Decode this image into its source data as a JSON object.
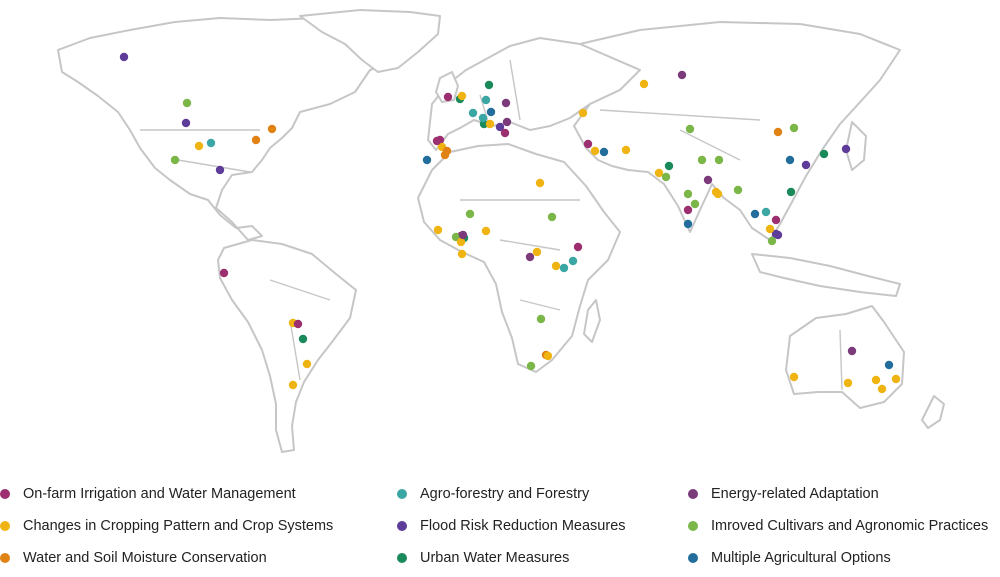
{
  "colors": {
    "on_farm_irrigation": "#9c2f6f",
    "changes_cropping": "#f0b412",
    "water_soil": "#e08214",
    "agro_forestry": "#3aa7a4",
    "flood_risk": "#5e3c99",
    "urban_water": "#1a8a5a",
    "energy": "#7b3b7b",
    "improved_cultivars": "#7ab648",
    "multiple_agri": "#236d9c"
  },
  "legend": [
    {
      "key": "on_farm_irrigation",
      "label": "On-farm Irrigation and Water Management"
    },
    {
      "key": "changes_cropping",
      "label": "Changes in Cropping Pattern and Crop Systems"
    },
    {
      "key": "water_soil",
      "label": "Water and Soil Moisture Conservation"
    },
    {
      "key": "agro_forestry",
      "label": "Agro-forestry and Forestry"
    },
    {
      "key": "flood_risk",
      "label": "Flood Risk Reduction Measures"
    },
    {
      "key": "urban_water",
      "label": "Urban Water Measures"
    },
    {
      "key": "energy",
      "label": "Energy-related Adaptation"
    },
    {
      "key": "improved_cultivars",
      "label": "Imroved Cultivars and Agronomic Practices"
    },
    {
      "key": "multiple_agri",
      "label": "Multiple Agricultural Options"
    }
  ],
  "markers": [
    {
      "region": "Alaska",
      "cat": "flood_risk"
    },
    {
      "region": "Canada (Prairies)",
      "cat": "improved_cultivars"
    },
    {
      "region": "USA (North)",
      "cat": "flood_risk"
    },
    {
      "region": "USA (Midwest)",
      "cat": "changes_cropping"
    },
    {
      "region": "USA (Midwest)",
      "cat": "agro_forestry"
    },
    {
      "region": "USA (West)",
      "cat": "improved_cultivars"
    },
    {
      "region": "USA (Northeast)",
      "cat": "water_soil"
    },
    {
      "region": "USA (East)",
      "cat": "water_soil"
    },
    {
      "region": "USA (South)",
      "cat": "flood_risk"
    },
    {
      "region": "Ecuador",
      "cat": "on_farm_irrigation"
    },
    {
      "region": "Bolivia",
      "cat": "changes_cropping"
    },
    {
      "region": "Bolivia",
      "cat": "on_farm_irrigation"
    },
    {
      "region": "Paraguay",
      "cat": "urban_water"
    },
    {
      "region": "Brazil (South)",
      "cat": "changes_cropping"
    },
    {
      "region": "Argentina",
      "cat": "changes_cropping"
    },
    {
      "region": "UK",
      "cat": "on_farm_irrigation"
    },
    {
      "region": "UK",
      "cat": "urban_water"
    },
    {
      "region": "Netherlands",
      "cat": "changes_cropping"
    },
    {
      "region": "Germany",
      "cat": "urban_water"
    },
    {
      "region": "Germany",
      "cat": "agro_forestry"
    },
    {
      "region": "Poland",
      "cat": "energy"
    },
    {
      "region": "France",
      "cat": "agro_forestry"
    },
    {
      "region": "France",
      "cat": "urban_water"
    },
    {
      "region": "Switzerland",
      "cat": "agro_forestry"
    },
    {
      "region": "Switzerland",
      "cat": "multiple_agri"
    },
    {
      "region": "Austria",
      "cat": "flood_risk"
    },
    {
      "region": "Italy",
      "cat": "changes_cropping"
    },
    {
      "region": "Italy",
      "cat": "energy"
    },
    {
      "region": "Balkans",
      "cat": "on_farm_irrigation"
    },
    {
      "region": "Spain",
      "cat": "on_farm_irrigation"
    },
    {
      "region": "Spain",
      "cat": "changes_cropping"
    },
    {
      "region": "Spain",
      "cat": "water_soil"
    },
    {
      "region": "Portugal",
      "cat": "on_farm_irrigation"
    },
    {
      "region": "Morocco",
      "cat": "multiple_agri"
    },
    {
      "region": "Algeria",
      "cat": "water_soil"
    },
    {
      "region": "Russia (West)",
      "cat": "changes_cropping"
    },
    {
      "region": "Russia",
      "cat": "energy"
    },
    {
      "region": "Kazakhstan",
      "cat": "changes_cropping"
    },
    {
      "region": "Turkey",
      "cat": "on_farm_irrigation"
    },
    {
      "region": "Syria",
      "cat": "changes_cropping"
    },
    {
      "region": "Iraq",
      "cat": "multiple_agri"
    },
    {
      "region": "Iran",
      "cat": "changes_cropping"
    },
    {
      "region": "Niger",
      "cat": "changes_cropping"
    },
    {
      "region": "Sudan",
      "cat": "improved_cultivars"
    },
    {
      "region": "Mali",
      "cat": "improved_cultivars"
    },
    {
      "region": "Senegal",
      "cat": "changes_cropping"
    },
    {
      "region": "Burkina Faso",
      "cat": "on_farm_irrigation"
    },
    {
      "region": "Burkina Faso",
      "cat": "urban_water"
    },
    {
      "region": "Ghana",
      "cat": "improved_cultivars"
    },
    {
      "region": "Ghana",
      "cat": "changes_cropping"
    },
    {
      "region": "Ghana",
      "cat": "energy"
    },
    {
      "region": "Togo",
      "cat": "changes_cropping"
    },
    {
      "region": "Nigeria",
      "cat": "changes_cropping"
    },
    {
      "region": "Ethiopia",
      "cat": "changes_cropping"
    },
    {
      "region": "Ethiopia",
      "cat": "on_farm_irrigation"
    },
    {
      "region": "DR Congo",
      "cat": "energy"
    },
    {
      "region": "Uganda",
      "cat": "changes_cropping"
    },
    {
      "region": "Kenya",
      "cat": "agro_forestry"
    },
    {
      "region": "Kenya",
      "cat": "agro_forestry"
    },
    {
      "region": "Zambia",
      "cat": "improved_cultivars"
    },
    {
      "region": "Mozambique",
      "cat": "water_soil"
    },
    {
      "region": "South Africa",
      "cat": "changes_cropping"
    },
    {
      "region": "South Africa",
      "cat": "improved_cultivars"
    },
    {
      "region": "Kazakhstan (East)",
      "cat": "improved_cultivars"
    },
    {
      "region": "Mongolia",
      "cat": "improved_cultivars"
    },
    {
      "region": "China (North)",
      "cat": "water_soil"
    },
    {
      "region": "China (Northeast)",
      "cat": "urban_water"
    },
    {
      "region": "Korea",
      "cat": "flood_risk"
    },
    {
      "region": "Pakistan",
      "cat": "changes_cropping"
    },
    {
      "region": "Pakistan",
      "cat": "improved_cultivars"
    },
    {
      "region": "Pakistan",
      "cat": "urban_water"
    },
    {
      "region": "India (North)",
      "cat": "improved_cultivars"
    },
    {
      "region": "India (North)",
      "cat": "improved_cultivars"
    },
    {
      "region": "India (North)",
      "cat": "energy"
    },
    {
      "region": "India (Northeast)",
      "cat": "improved_cultivars"
    },
    {
      "region": "Nepal",
      "cat": "changes_cropping"
    },
    {
      "region": "India (Central)",
      "cat": "improved_cultivars"
    },
    {
      "region": "India (Central)",
      "cat": "improved_cultivars"
    },
    {
      "region": "India (Central)",
      "cat": "on_farm_irrigation"
    },
    {
      "region": "India (South)",
      "cat": "multiple_agri"
    },
    {
      "region": "Bangladesh",
      "cat": "changes_cropping"
    },
    {
      "region": "China (Central)",
      "cat": "multiple_agri"
    },
    {
      "region": "China (East)",
      "cat": "flood_risk"
    },
    {
      "region": "China (South)",
      "cat": "urban_water"
    },
    {
      "region": "Myanmar",
      "cat": "multiple_agri"
    },
    {
      "region": "Thailand",
      "cat": "agro_forestry"
    },
    {
      "region": "Thailand",
      "cat": "flood_risk"
    },
    {
      "region": "Vietnam",
      "cat": "on_farm_irrigation"
    },
    {
      "region": "Cambodia",
      "cat": "changes_cropping"
    },
    {
      "region": "Cambodia",
      "cat": "flood_risk"
    },
    {
      "region": "Malaysia",
      "cat": "improved_cultivars"
    },
    {
      "region": "Australia (North)",
      "cat": "energy"
    },
    {
      "region": "Australia (East)",
      "cat": "multiple_agri"
    },
    {
      "region": "Australia (West)",
      "cat": "changes_cropping"
    },
    {
      "region": "Australia (South)",
      "cat": "changes_cropping"
    },
    {
      "region": "Australia (Southeast)",
      "cat": "changes_cropping"
    },
    {
      "region": "Australia (Southeast)",
      "cat": "changes_cropping"
    },
    {
      "region": "Australia (Southeast)",
      "cat": "changes_cropping"
    }
  ]
}
